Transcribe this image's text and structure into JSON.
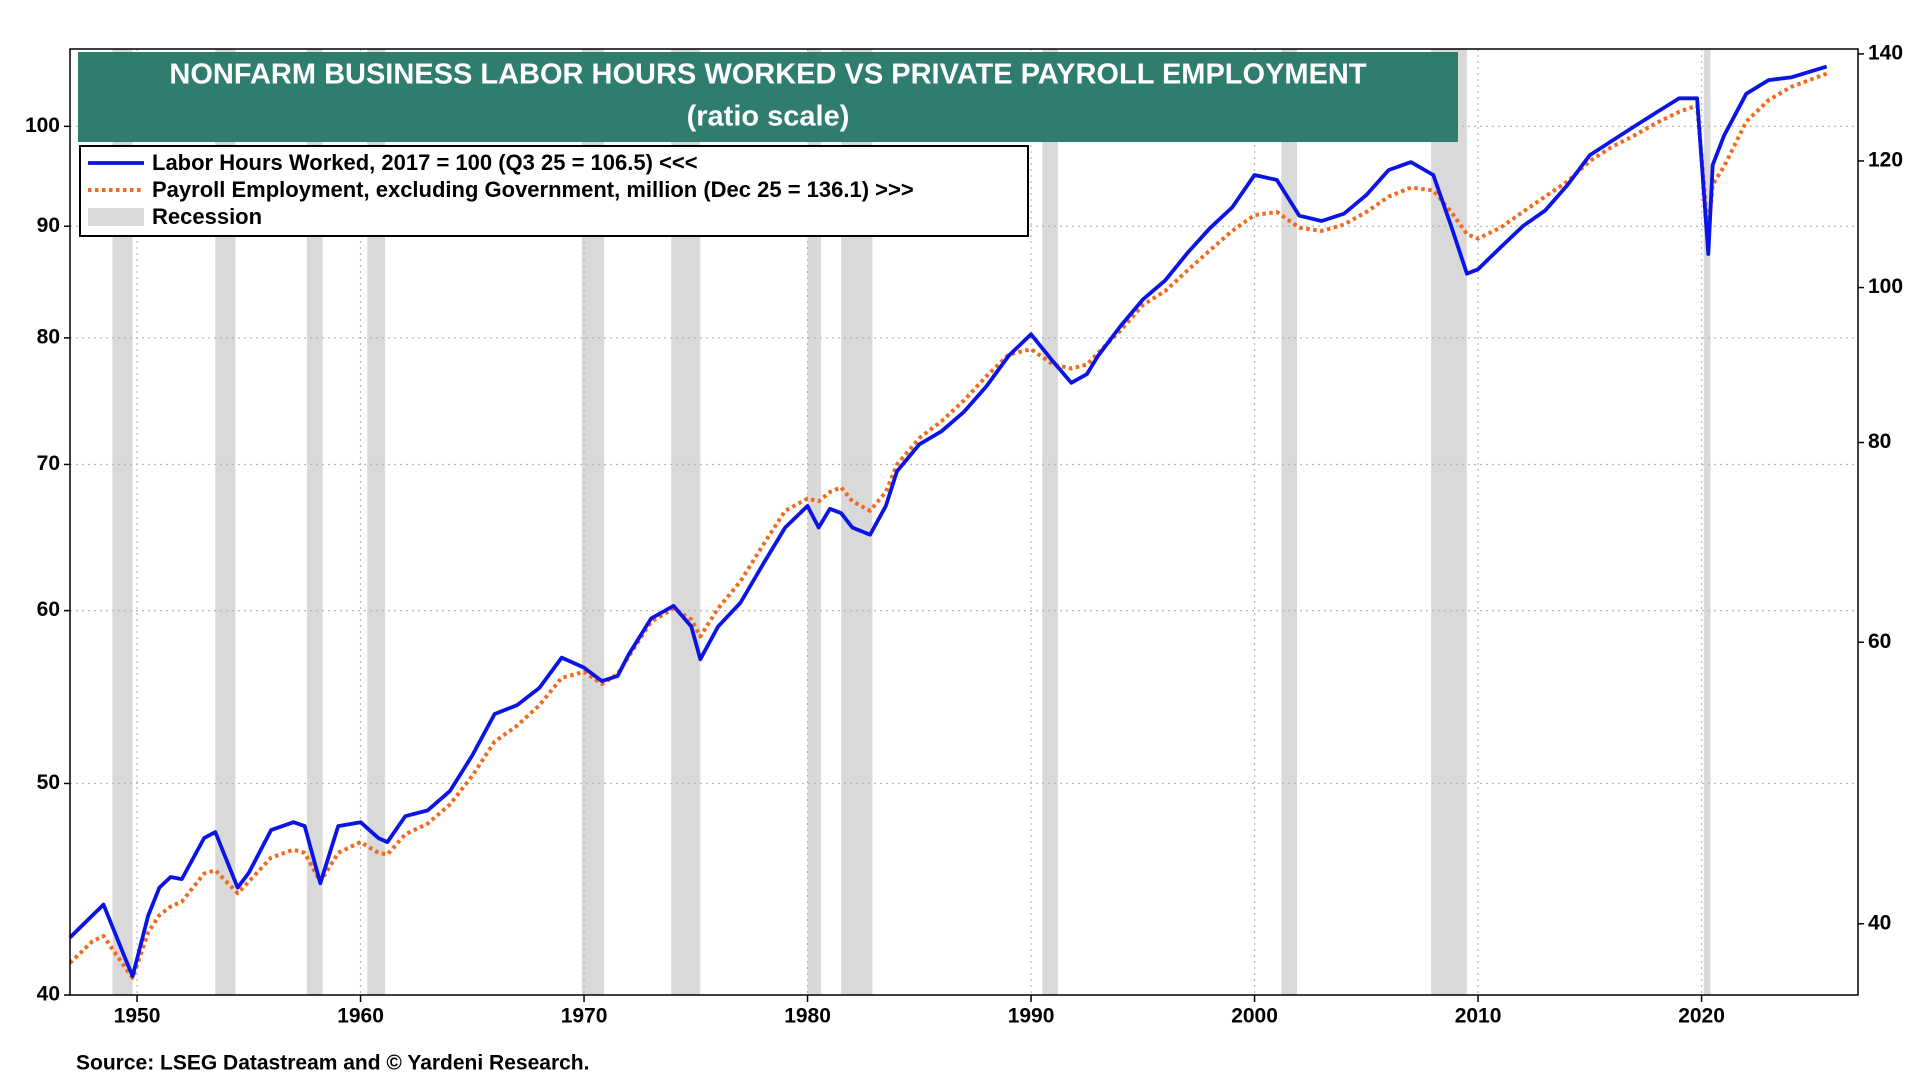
{
  "chart_data": {
    "type": "line",
    "title": "NONFARM BUSINESS LABOR HOURS WORKED VS PRIVATE PAYROLL EMPLOYMENT",
    "subtitle": "(ratio scale)",
    "source": "Source: LSEG Datastream and © Yardeni Research.",
    "log_scale": true,
    "grid": true,
    "legend": "top-left",
    "xlim": [
      1947,
      2027
    ],
    "xticks": [
      1950,
      1960,
      1970,
      1980,
      1990,
      2000,
      2010,
      2020
    ],
    "ylim": [
      40,
      108.5
    ],
    "yticks": [
      40,
      50,
      60,
      70,
      80,
      90,
      100
    ],
    "y2lim": [
      36.1,
      141
    ],
    "y2ticks": [
      40,
      60,
      80,
      100,
      120,
      140
    ],
    "x": [
      1947,
      1948,
      1948.5,
      1949.5,
      1949.8,
      1950.5,
      1951,
      1951.5,
      1952,
      1953,
      1953.5,
      1954.5,
      1955,
      1956,
      1957,
      1957.5,
      1958.2,
      1959,
      1960,
      1960.8,
      1961.2,
      1962,
      1963,
      1964,
      1965,
      1966,
      1967,
      1968,
      1969,
      1970,
      1970.8,
      1971.5,
      1972,
      1973,
      1974,
      1974.8,
      1975.2,
      1976,
      1977,
      1978,
      1979,
      1980,
      1980.5,
      1981,
      1981.5,
      1982,
      1982.8,
      1983.5,
      1984,
      1985,
      1986,
      1987,
      1988,
      1989,
      1990,
      1991,
      1991.8,
      1992.5,
      1993,
      1994,
      1995,
      1996,
      1997,
      1998,
      1999,
      2000,
      2001,
      2002,
      2003,
      2004,
      2005,
      2006,
      2007,
      2008,
      2008.8,
      2009.5,
      2010,
      2011,
      2012,
      2013,
      2014,
      2015,
      2016,
      2017,
      2018,
      2019,
      2019.8,
      2020.3,
      2020.5,
      2021,
      2022,
      2023,
      2024,
      2025.6
    ],
    "series": [
      {
        "name": "Labor Hours Worked, 2017 = 100 (Q3 25 = 106.5) <<<",
        "color": "#0a14e6",
        "axis": "y",
        "values": [
          42.5,
          43.5,
          44,
          41.5,
          40.8,
          43.5,
          44.8,
          45.3,
          45.2,
          47.2,
          47.5,
          44.8,
          45.5,
          47.6,
          48,
          47.8,
          45,
          47.8,
          48,
          47.2,
          47,
          48.3,
          48.6,
          49.6,
          51.5,
          53.8,
          54.3,
          55.3,
          57.1,
          56.5,
          55.7,
          56,
          57.3,
          59.5,
          60.3,
          59,
          57,
          59,
          60.5,
          63,
          65.5,
          67,
          65.5,
          66.8,
          66.5,
          65.5,
          65,
          67,
          69.5,
          71.5,
          72.5,
          74,
          76,
          78.5,
          80.3,
          78,
          76.3,
          77,
          78.5,
          81,
          83.3,
          85,
          87.5,
          89.8,
          91.8,
          95,
          94.5,
          91,
          90.5,
          91.2,
          93,
          95.5,
          96.3,
          95,
          90,
          85.6,
          86,
          88,
          90,
          91.5,
          94,
          97,
          98.5,
          100,
          101.5,
          103,
          103,
          87.4,
          96,
          99,
          103.5,
          105,
          105.3,
          106.5
        ]
      },
      {
        "name": "Payroll Employment, excluding Government, million  (Dec 25 = 136.1) >>>",
        "color": "#f26a1b",
        "axis": "y2",
        "values": [
          37.8,
          39,
          39.3,
          37.5,
          37,
          39.5,
          40.5,
          41,
          41.3,
          43,
          43.2,
          41.8,
          42.5,
          44,
          44.5,
          44.3,
          42.5,
          44.3,
          45,
          44.3,
          44.2,
          45.5,
          46.2,
          47.5,
          49.5,
          52,
          53.2,
          54.8,
          57,
          57.5,
          56.5,
          57.3,
          58.8,
          61.8,
          63,
          62,
          60.5,
          63,
          65.5,
          69,
          72.5,
          73.8,
          73.5,
          74.5,
          75,
          73.5,
          72.5,
          74.5,
          77.5,
          80.5,
          82.5,
          85,
          88,
          90.8,
          91.5,
          89.5,
          89,
          89.5,
          91,
          94,
          97.5,
          99.5,
          102.5,
          105.5,
          108.5,
          111,
          111.5,
          109,
          108.5,
          109.5,
          111.5,
          114,
          115.5,
          115,
          111.5,
          108,
          107.3,
          109,
          111.5,
          114,
          116.5,
          120,
          122.5,
          124.5,
          126.8,
          128.8,
          130,
          108,
          116,
          119,
          127,
          131,
          133.5,
          136.1
        ]
      }
    ],
    "recession": {
      "name": "Recession",
      "color": "#d9d9d9",
      "periods": [
        [
          1948.9,
          1949.8
        ],
        [
          1953.5,
          1954.4
        ],
        [
          1957.6,
          1958.3
        ],
        [
          1960.3,
          1961.1
        ],
        [
          1969.9,
          1970.9
        ],
        [
          1973.9,
          1975.2
        ],
        [
          1980.0,
          1980.6
        ],
        [
          1981.5,
          1982.9
        ],
        [
          1990.5,
          1991.2
        ],
        [
          2001.2,
          2001.9
        ],
        [
          2007.9,
          2009.5
        ],
        [
          2020.1,
          2020.4
        ]
      ]
    }
  }
}
